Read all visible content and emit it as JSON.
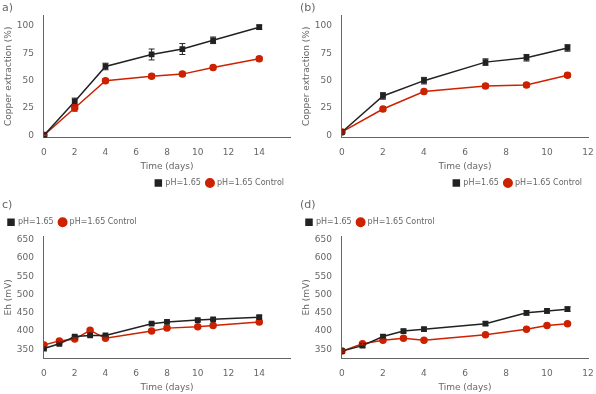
{
  "chart_data": [
    {
      "type": "line",
      "title": "a)",
      "x_label": "Time (days)",
      "y_label": "Copper extraction (%)",
      "x": [
        0,
        2,
        4,
        7,
        9,
        11,
        14
      ],
      "series": [
        {
          "name": "pH=1.65",
          "color": "#222222",
          "marker": "square",
          "values": [
            0,
            31,
            63,
            74,
            79,
            87,
            99
          ],
          "yerr": [
            0,
            3,
            3,
            5,
            5,
            3,
            2
          ]
        },
        {
          "name": "pH=1.65 Control",
          "color": "#cc2200",
          "marker": "circle",
          "values": [
            0,
            25,
            50,
            54,
            56,
            62,
            70
          ],
          "yerr": [
            0,
            3,
            2,
            2,
            2,
            2,
            2
          ]
        }
      ],
      "xlim": [
        0,
        16
      ],
      "ylim": [
        -2,
        110
      ],
      "xticks": [
        0,
        2,
        4,
        6,
        8,
        10,
        12,
        14
      ],
      "yticks": [
        0,
        25,
        50,
        75,
        100
      ],
      "grid": false,
      "legend": "lower right"
    },
    {
      "type": "line",
      "title": "(b)",
      "x_label": "Time (days)",
      "y_label": "Copper extraction (%)",
      "x": [
        0,
        2,
        4,
        7,
        9,
        11
      ],
      "series": [
        {
          "name": "pH=1.65",
          "color": "#222222",
          "marker": "square",
          "values": [
            3,
            36,
            50,
            67,
            71,
            80
          ],
          "yerr": [
            1,
            3,
            3,
            3,
            3,
            3
          ]
        },
        {
          "name": "pH=1.65 Control",
          "color": "#cc2200",
          "marker": "circle",
          "values": [
            3,
            24,
            40,
            45,
            46,
            55
          ],
          "yerr": [
            1,
            2,
            2,
            2,
            2,
            2
          ]
        }
      ],
      "xlim": [
        0,
        12
      ],
      "ylim": [
        -2,
        110
      ],
      "xticks": [
        0,
        2,
        4,
        6,
        8,
        10,
        12
      ],
      "yticks": [
        0,
        25,
        50,
        75,
        100
      ],
      "grid": false,
      "legend": "lower right"
    },
    {
      "type": "line",
      "title": "c)",
      "x_label": "Time (days)",
      "y_label": "Eh (mV)",
      "x": [
        0,
        1,
        2,
        3,
        4,
        7,
        8,
        10,
        11,
        14
      ],
      "series": [
        {
          "name": "pH=1.65",
          "color": "#222222",
          "marker": "square",
          "values": [
            352,
            365,
            385,
            388,
            388,
            420,
            425,
            430,
            432,
            438
          ],
          "yerr": [
            3,
            3,
            3,
            3,
            3,
            3,
            3,
            3,
            3,
            4
          ]
        },
        {
          "name": "pH=1.65 Control",
          "color": "#cc2200",
          "marker": "circle",
          "values": [
            362,
            373,
            378,
            402,
            380,
            400,
            408,
            412,
            415,
            425
          ],
          "yerr": [
            3,
            3,
            3,
            3,
            3,
            3,
            3,
            3,
            3,
            3
          ]
        }
      ],
      "xlim": [
        0,
        16
      ],
      "ylim": [
        325,
        660
      ],
      "xticks": [
        0,
        2,
        4,
        6,
        8,
        10,
        12,
        14
      ],
      "yticks": [
        350,
        400,
        450,
        500,
        550,
        600,
        650
      ],
      "grid": false,
      "legend": "upper left"
    },
    {
      "type": "line",
      "title": "(d)",
      "x_label": "Time (days)",
      "y_label": "Eh (mV)",
      "x": [
        0,
        1,
        2,
        3,
        4,
        7,
        9,
        10,
        11
      ],
      "series": [
        {
          "name": "pH=1.65",
          "color": "#222222",
          "marker": "square",
          "values": [
            345,
            360,
            385,
            400,
            405,
            420,
            450,
            455,
            460
          ],
          "yerr": [
            3,
            5,
            5,
            5,
            5,
            5,
            6,
            6,
            6
          ]
        },
        {
          "name": "pH=1.65 Control",
          "color": "#cc2200",
          "marker": "circle",
          "values": [
            345,
            365,
            375,
            380,
            375,
            390,
            405,
            415,
            420
          ],
          "yerr": [
            3,
            3,
            3,
            3,
            3,
            3,
            3,
            3,
            3
          ]
        }
      ],
      "xlim": [
        0,
        12
      ],
      "ylim": [
        325,
        660
      ],
      "xticks": [
        0,
        2,
        4,
        6,
        8,
        10,
        12
      ],
      "yticks": [
        350,
        400,
        450,
        500,
        550,
        600,
        650
      ],
      "grid": false,
      "legend": "upper left"
    }
  ]
}
